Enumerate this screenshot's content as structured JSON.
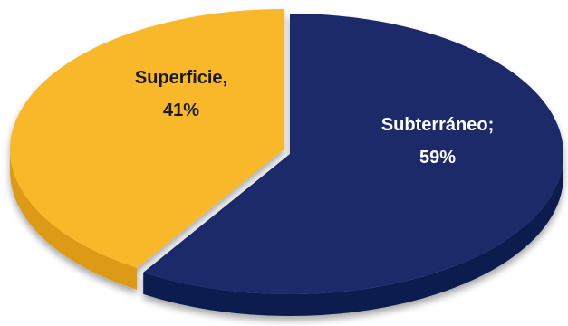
{
  "chart_data": {
    "type": "pie",
    "style": "3d-exploded",
    "slices": [
      {
        "label": "Subterráneo",
        "value": 59,
        "label_line1": "Subterráneo;",
        "label_line2": "59%",
        "color": "#1a2c6b",
        "side_color": "#0f1d4f",
        "text_color": "#ffffff"
      },
      {
        "label": "Superficie",
        "value": 41,
        "label_line1": "Superficie,",
        "label_line2": "41%",
        "color": "#f8b829",
        "side_color": "#dd9a12",
        "text_color": "#1a1a1a"
      }
    ]
  }
}
